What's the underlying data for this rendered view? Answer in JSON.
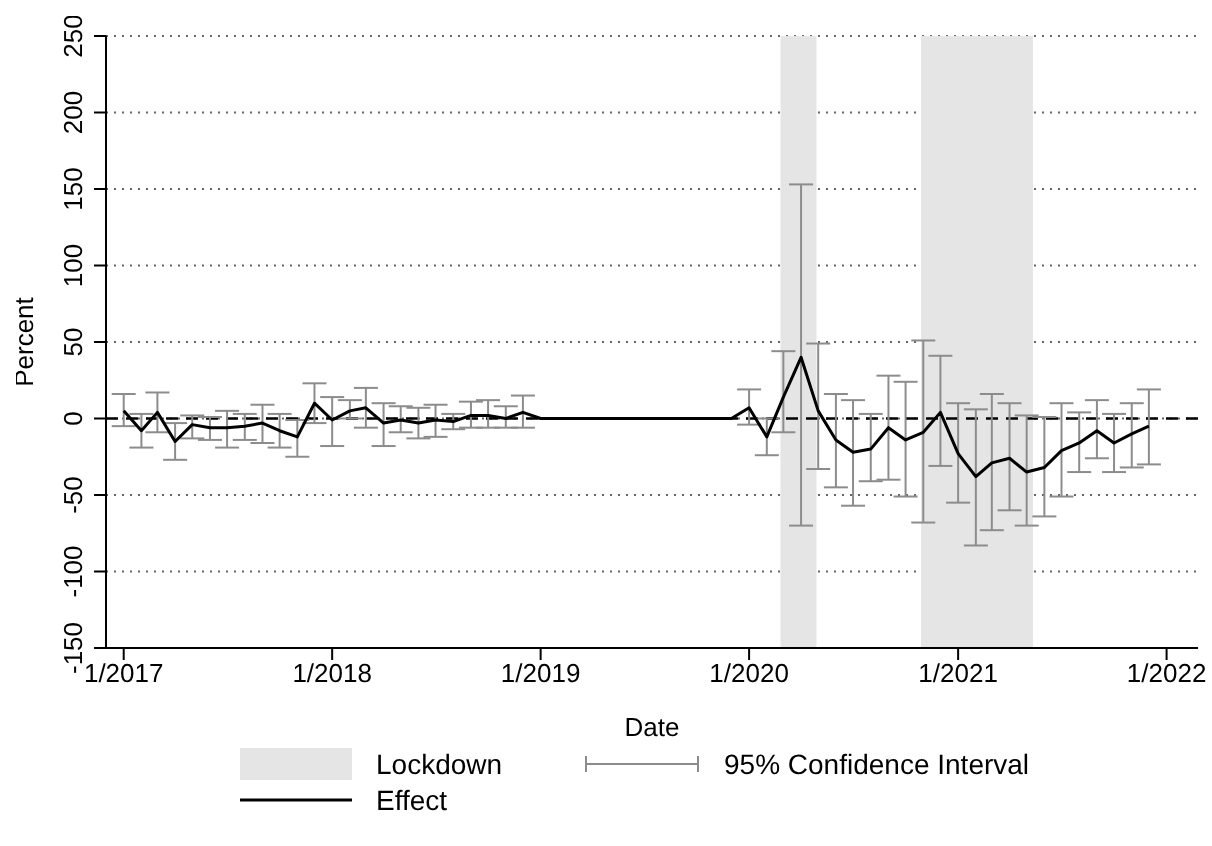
{
  "chart_data": {
    "type": "line",
    "xlabel": "Date",
    "ylabel": "Percent",
    "x": [
      "2017-01",
      "2017-02",
      "2017-03",
      "2017-04",
      "2017-05",
      "2017-06",
      "2017-07",
      "2017-08",
      "2017-09",
      "2017-10",
      "2017-11",
      "2017-12",
      "2018-01",
      "2018-02",
      "2018-03",
      "2018-04",
      "2018-05",
      "2018-06",
      "2018-07",
      "2018-08",
      "2018-09",
      "2018-10",
      "2018-11",
      "2018-12",
      "2019-01",
      "2019-02",
      "2019-03",
      "2019-04",
      "2019-05",
      "2019-06",
      "2019-07",
      "2019-08",
      "2019-09",
      "2019-10",
      "2019-11",
      "2019-12",
      "2020-01",
      "2020-02",
      "2020-03",
      "2020-04",
      "2020-05",
      "2020-06",
      "2020-07",
      "2020-08",
      "2020-09",
      "2020-10",
      "2020-11",
      "2020-12",
      "2021-01",
      "2021-02",
      "2021-03",
      "2021-04",
      "2021-05",
      "2021-06",
      "2021-07",
      "2021-08",
      "2021-09",
      "2021-10",
      "2021-11",
      "2021-12"
    ],
    "series": [
      {
        "name": "Effect",
        "color": "#000000",
        "line_style": "solid",
        "marker": "none",
        "values": [
          5,
          -8,
          4,
          -15,
          -4,
          -6,
          -6,
          -5,
          -3,
          -8,
          -12,
          10,
          -1,
          5,
          7,
          -3,
          -1,
          -3,
          -1,
          -2,
          2,
          2,
          0,
          4,
          0,
          0,
          0,
          0,
          0,
          0,
          0,
          0,
          0,
          0,
          0,
          0,
          7,
          -12,
          14,
          40,
          5,
          -14,
          -22,
          -20,
          -6,
          -14,
          -9,
          4,
          -23,
          -38,
          -29,
          -26,
          -35,
          -32,
          -21,
          -16,
          -8,
          -16,
          -10,
          -5
        ],
        "errors": [
          [
            -5,
            16
          ],
          [
            -19,
            3
          ],
          [
            -9,
            17
          ],
          [
            -27,
            -3
          ],
          [
            -13,
            2
          ],
          [
            -14,
            1
          ],
          [
            -19,
            5
          ],
          [
            -14,
            3
          ],
          [
            -16,
            9
          ],
          [
            -19,
            3
          ],
          [
            -25,
            -1
          ],
          [
            -3,
            23
          ],
          [
            -18,
            14
          ],
          [
            0,
            12
          ],
          [
            -6,
            20
          ],
          [
            -18,
            10
          ],
          [
            -9,
            8
          ],
          [
            -13,
            7
          ],
          [
            -12,
            9
          ],
          [
            -7,
            3
          ],
          [
            -6,
            11
          ],
          [
            -6,
            12
          ],
          [
            -6,
            8
          ],
          [
            -6,
            15
          ],
          null,
          null,
          null,
          null,
          null,
          null,
          null,
          null,
          null,
          null,
          null,
          null,
          [
            -4,
            19
          ],
          [
            -24,
            0
          ],
          [
            -9,
            44
          ],
          [
            -70,
            153
          ],
          [
            -33,
            49
          ],
          [
            -45,
            16
          ],
          [
            -57,
            12
          ],
          [
            -41,
            3
          ],
          [
            -40,
            28
          ],
          [
            -51,
            24
          ],
          [
            -68,
            51
          ],
          [
            -31,
            41
          ],
          [
            -55,
            10
          ],
          [
            -83,
            6
          ],
          [
            -73,
            16
          ],
          [
            -60,
            10
          ],
          [
            -70,
            2
          ],
          [
            -64,
            1
          ],
          [
            -51,
            10
          ],
          [
            -35,
            4
          ],
          [
            -26,
            12
          ],
          [
            -35,
            3
          ],
          [
            -32,
            10
          ],
          [
            -30,
            19
          ]
        ]
      }
    ],
    "xlim": [
      "2016-12",
      "2022-02-25"
    ],
    "xticks": [
      {
        "value": "2017-01",
        "label": "1/2017"
      },
      {
        "value": "2018-01",
        "label": "1/2018"
      },
      {
        "value": "2019-01",
        "label": "1/2019"
      },
      {
        "value": "2020-01",
        "label": "1/2020"
      },
      {
        "value": "2021-01",
        "label": "1/2021"
      },
      {
        "value": "2022-01",
        "label": "1/2022"
      }
    ],
    "ylim": [
      -150,
      250
    ],
    "yticks": [
      -150,
      -100,
      -50,
      0,
      50,
      100,
      150,
      200,
      250
    ],
    "grid": "y",
    "legend": "bottom",
    "ref_lines": [
      {
        "axis": "y",
        "value": 0,
        "color": "#000000",
        "line_style": "dashed"
      }
    ],
    "bands": [
      {
        "axis": "x",
        "from": "2020-02-25",
        "to": "2020-04-28",
        "label": "Lockdown",
        "color": "#e5e5e5"
      },
      {
        "axis": "x",
        "from": "2020-10-28",
        "to": "2021-05-12",
        "color": "#e5e5e5"
      }
    ],
    "annotations": [
      "95% Confidence Interval"
    ]
  }
}
